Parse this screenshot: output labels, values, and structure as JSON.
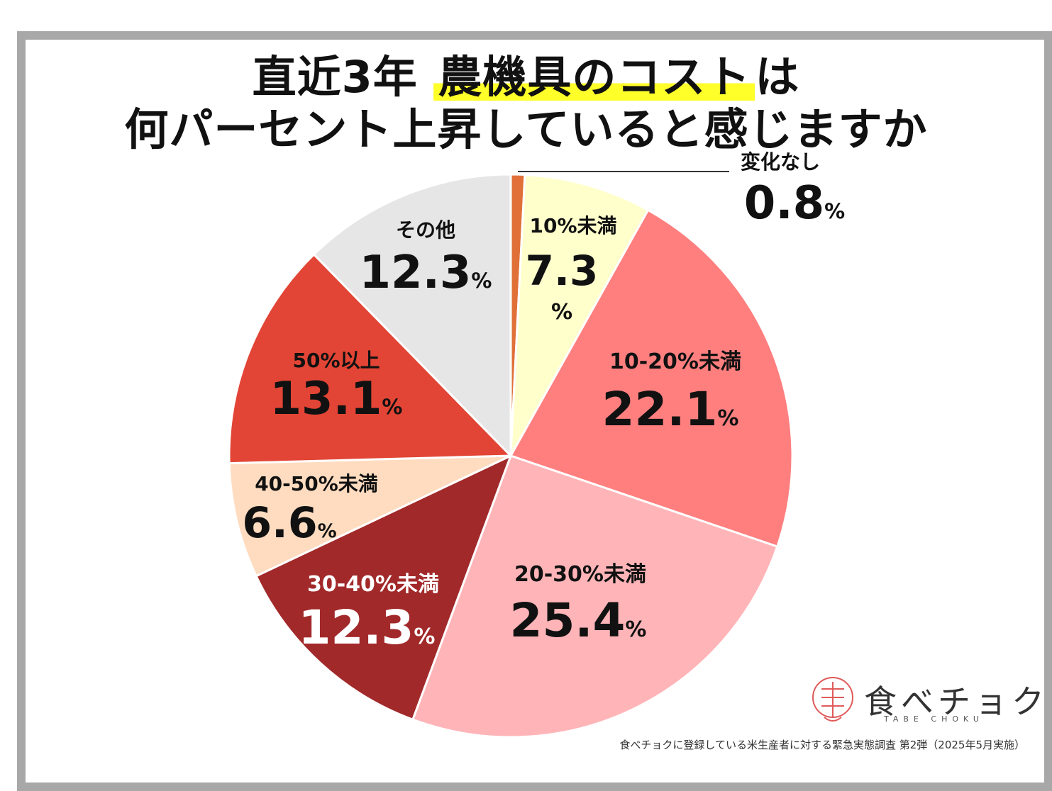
{
  "title": {
    "line1_prefix": "直近3年 ",
    "line1_highlight": "農機具のコスト",
    "line1_suffix": "は",
    "line2": "何パーセント上昇していると感じますか"
  },
  "chart_data": {
    "type": "pie",
    "start": "top",
    "direction": "clockwise",
    "slices": [
      {
        "label": "変化なし",
        "value": 0.8,
        "color": "#e07038"
      },
      {
        "label": "10%未満",
        "value": 7.3,
        "color": "#ffffcc"
      },
      {
        "label": "10-20%未満",
        "value": 22.1,
        "color": "#ff7f7f"
      },
      {
        "label": "20-30%未満",
        "value": 25.4,
        "color": "#ffb5b8"
      },
      {
        "label": "30-40%未満",
        "value": 12.3,
        "color": "#a2292a"
      },
      {
        "label": "40-50%未満",
        "value": 6.6,
        "color": "#ffdcc0"
      },
      {
        "label": "50%以上",
        "value": 13.1,
        "color": "#e24535"
      },
      {
        "label": "その他",
        "value": 12.3,
        "color": "#e6e6e6"
      }
    ],
    "value_suffix": "%"
  },
  "logo": {
    "text": "食べチョク",
    "subtext": "TABE CHOKU",
    "accent": "#e05a5a"
  },
  "source_note": "食べチョクに登録している米生産者に対する緊急実態調査 第2弾（2025年5月実施）"
}
